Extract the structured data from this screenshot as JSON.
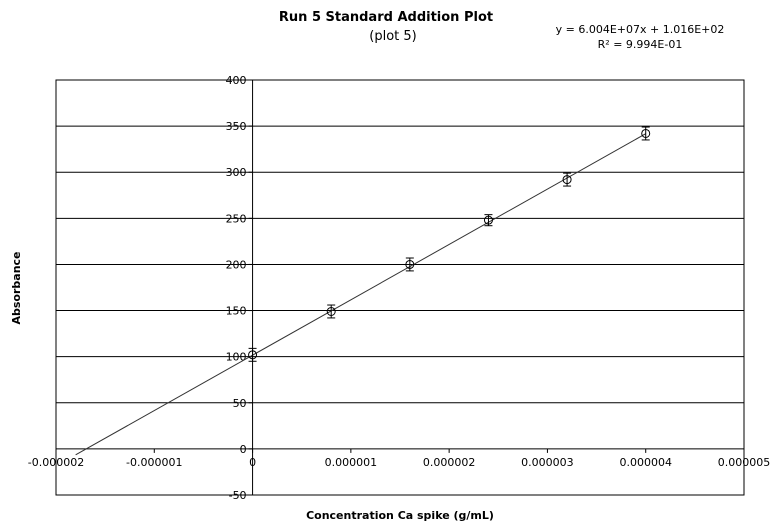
{
  "chart_data": {
    "type": "scatter",
    "title": "Run 5 Standard Addition Plot",
    "subtitle": "(plot 5)",
    "xlabel": "Concentration Ca spike (g/mL)",
    "ylabel": "Absorbance",
    "xlim": [
      -2e-06,
      5e-06
    ],
    "ylim": [
      -50,
      400
    ],
    "x_ticks": [
      "-0.000002",
      "-0.000001",
      "0",
      "0.000001",
      "0.000002",
      "0.000003",
      "0.000004",
      "0.000005"
    ],
    "y_ticks": [
      "-50",
      "0",
      "50",
      "100",
      "150",
      "200",
      "250",
      "300",
      "350",
      "400"
    ],
    "grid": "horizontal",
    "legend": "none",
    "series": [
      {
        "x": [
          0,
          8e-07,
          1.6e-06,
          2.4e-06,
          3.2e-06,
          4e-06
        ],
        "y": [
          102,
          149,
          200,
          248,
          292,
          342
        ],
        "error": [
          7,
          7,
          7,
          6,
          7,
          7
        ]
      }
    ],
    "trendline": {
      "slope": 60040000,
      "intercept": 101.6,
      "x_range": [
        -1.8e-06,
        4e-06
      ],
      "equation": "y = 6.004E+07x + 1.016E+02",
      "r2_label": "R² = 9.994E-01"
    }
  }
}
